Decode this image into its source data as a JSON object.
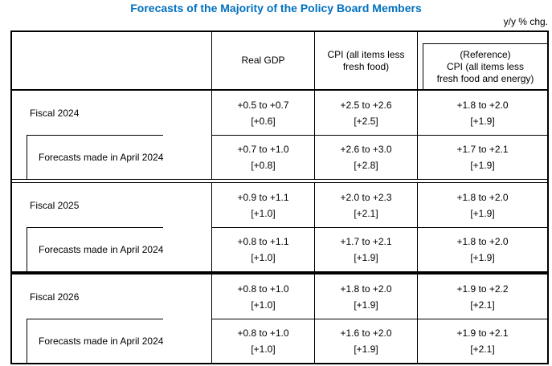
{
  "title": "Forecasts of the Majority of the Policy Board Members",
  "unit_note": "y/y % chg.",
  "accent_color": "#0070C0",
  "table": {
    "header": {
      "gdp": "Real GDP",
      "cpi": "CPI (all items less\nfresh food)",
      "reference": "(Reference)\nCPI (all items less\nfresh food and energy)"
    },
    "groups": [
      {
        "label": "Fiscal 2024",
        "current": {
          "gdp_range": "+0.5 to +0.7",
          "gdp_median": "[+0.6]",
          "cpi_range": "+2.5 to +2.6",
          "cpi_median": "[+2.5]",
          "ref_range": "+1.8 to +2.0",
          "ref_median": "[+1.9]"
        },
        "previous_label": "Forecasts made in April 2024",
        "previous": {
          "gdp_range": "+0.7 to +1.0",
          "gdp_median": "[+0.8]",
          "cpi_range": "+2.6 to +3.0",
          "cpi_median": "[+2.8]",
          "ref_range": "+1.7 to +2.1",
          "ref_median": "[+1.9]"
        }
      },
      {
        "label": "Fiscal 2025",
        "current": {
          "gdp_range": "+0.9 to +1.1",
          "gdp_median": "[+1.0]",
          "cpi_range": "+2.0 to +2.3",
          "cpi_median": "[+2.1]",
          "ref_range": "+1.8 to +2.0",
          "ref_median": "[+1.9]"
        },
        "previous_label": "Forecasts made in April 2024",
        "previous": {
          "gdp_range": "+0.8 to +1.1",
          "gdp_median": "[+1.0]",
          "cpi_range": "+1.7 to +2.1",
          "cpi_median": "[+1.9]",
          "ref_range": "+1.8 to +2.0",
          "ref_median": "[+1.9]"
        }
      },
      {
        "label": "Fiscal 2026",
        "current": {
          "gdp_range": "+0.8 to +1.0",
          "gdp_median": "[+1.0]",
          "cpi_range": "+1.8 to +2.0",
          "cpi_median": "[+1.9]",
          "ref_range": "+1.9 to +2.2",
          "ref_median": "[+2.1]"
        },
        "previous_label": "Forecasts made in April 2024",
        "previous": {
          "gdp_range": "+0.8 to +1.0",
          "gdp_median": "[+1.0]",
          "cpi_range": "+1.6 to +2.0",
          "cpi_median": "[+1.9]",
          "ref_range": "+1.9 to +2.1",
          "ref_median": "[+2.1]"
        }
      }
    ]
  }
}
